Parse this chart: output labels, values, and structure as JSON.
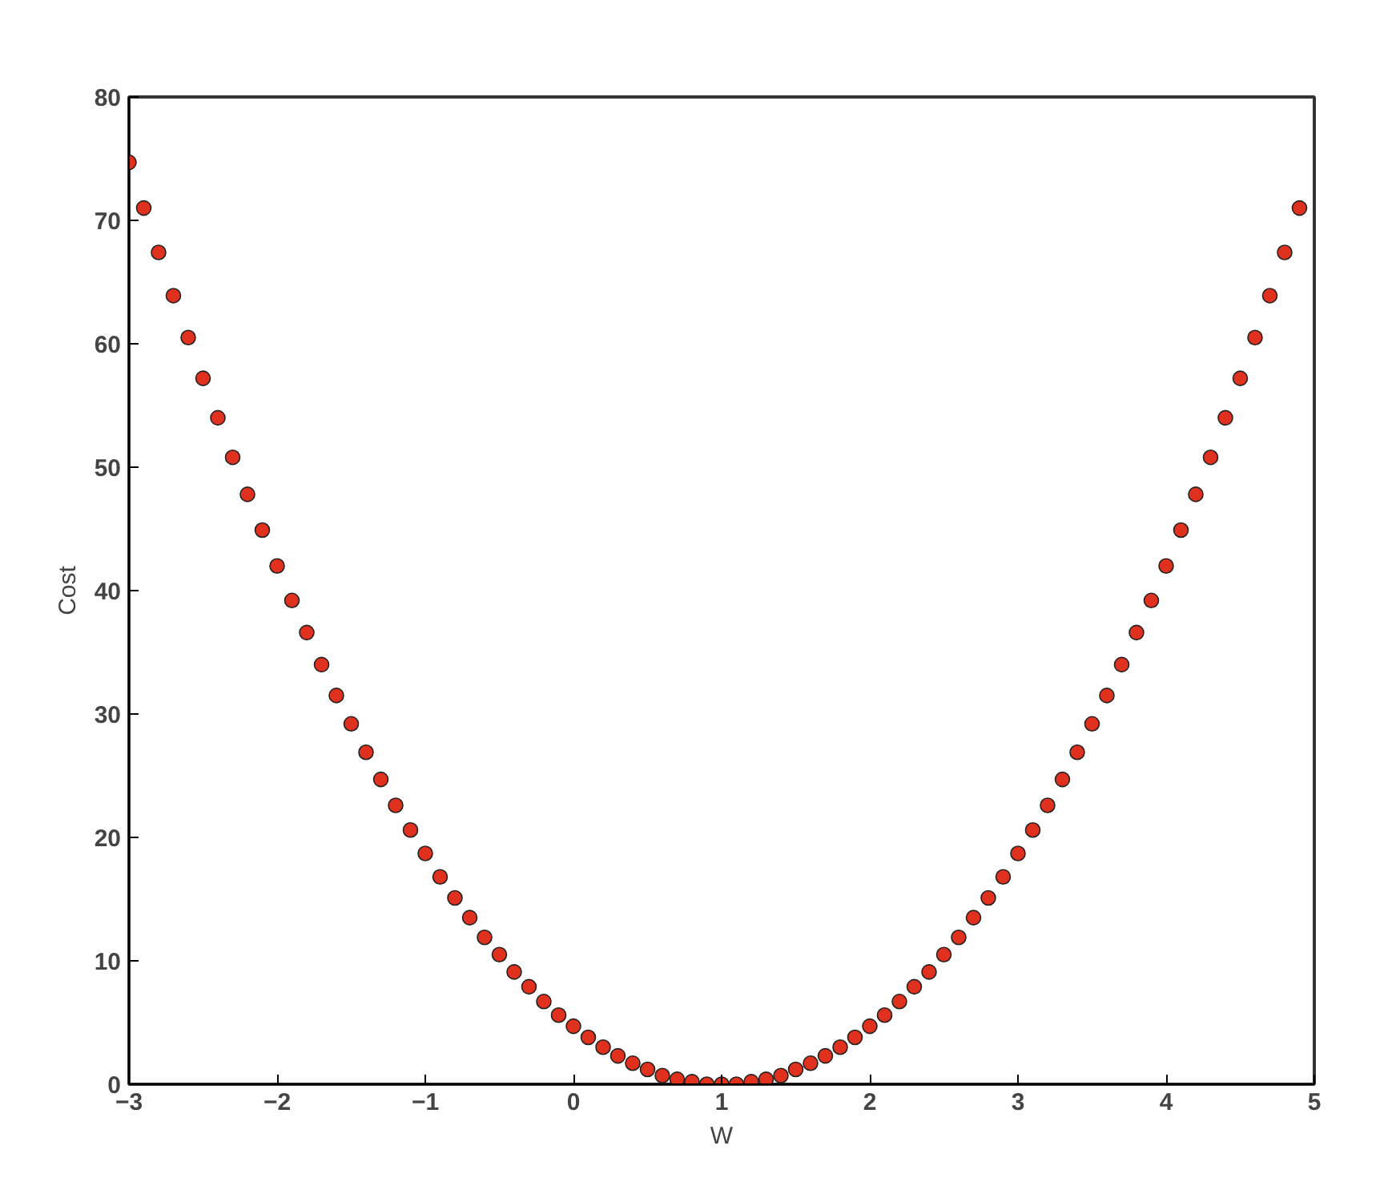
{
  "chart_data": {
    "type": "scatter",
    "xlabel": "W",
    "ylabel": "Cost",
    "x": [
      -3,
      -2.9,
      -2.8,
      -2.7,
      -2.6,
      -2.5,
      -2.4,
      -2.3,
      -2.2,
      -2.1,
      -2,
      -1.9,
      -1.8,
      -1.7,
      -1.6,
      -1.5,
      -1.4,
      -1.3,
      -1.2,
      -1.1,
      -1,
      -0.9,
      -0.8,
      -0.7,
      -0.6,
      -0.5,
      -0.4,
      -0.3,
      -0.2,
      -0.1,
      0,
      0.1,
      0.2,
      0.3,
      0.4,
      0.5,
      0.6,
      0.7,
      0.8,
      0.9,
      1,
      1.1,
      1.2,
      1.3,
      1.4,
      1.5,
      1.6,
      1.7,
      1.8,
      1.9,
      2,
      2.1,
      2.2,
      2.3,
      2.4,
      2.5,
      2.6,
      2.7,
      2.8,
      2.9,
      3,
      3.1,
      3.2,
      3.3,
      3.4,
      3.5,
      3.6,
      3.7,
      3.8,
      3.9,
      4,
      4.1,
      4.2,
      4.3,
      4.4,
      4.5,
      4.6,
      4.7,
      4.8,
      4.9
    ],
    "series": [
      {
        "color": "#e0301e",
        "values": [
          74.7,
          71.0,
          67.4,
          63.9,
          60.5,
          57.2,
          54.0,
          50.8,
          47.8,
          44.9,
          42.0,
          39.2,
          36.6,
          34.0,
          31.5,
          29.2,
          26.9,
          24.7,
          22.6,
          20.6,
          18.7,
          16.8,
          15.1,
          13.5,
          11.9,
          10.5,
          9.1,
          7.9,
          6.7,
          5.6,
          4.7,
          3.8,
          3.0,
          2.3,
          1.7,
          1.2,
          0.7,
          0.4,
          0.2,
          0.0,
          0.0,
          0.0,
          0.2,
          0.4,
          0.7,
          1.2,
          1.7,
          2.3,
          3.0,
          3.8,
          4.7,
          5.6,
          6.7,
          7.9,
          9.1,
          10.5,
          11.9,
          13.5,
          15.1,
          16.8,
          18.7,
          20.6,
          22.6,
          24.7,
          26.9,
          29.2,
          31.5,
          34.0,
          36.6,
          39.2,
          42.0,
          44.9,
          47.8,
          50.8,
          54.0,
          57.2,
          60.5,
          63.9,
          67.4,
          71.0
        ]
      }
    ],
    "xlim": [
      -3,
      5
    ],
    "xticks": [
      -3,
      -2,
      -1,
      0,
      1,
      2,
      3,
      4,
      5
    ],
    "ylim": [
      0,
      80
    ],
    "yticks": [
      0,
      10,
      20,
      30,
      40,
      50,
      60,
      70,
      80
    ],
    "grid": false,
    "marker": "circle"
  }
}
